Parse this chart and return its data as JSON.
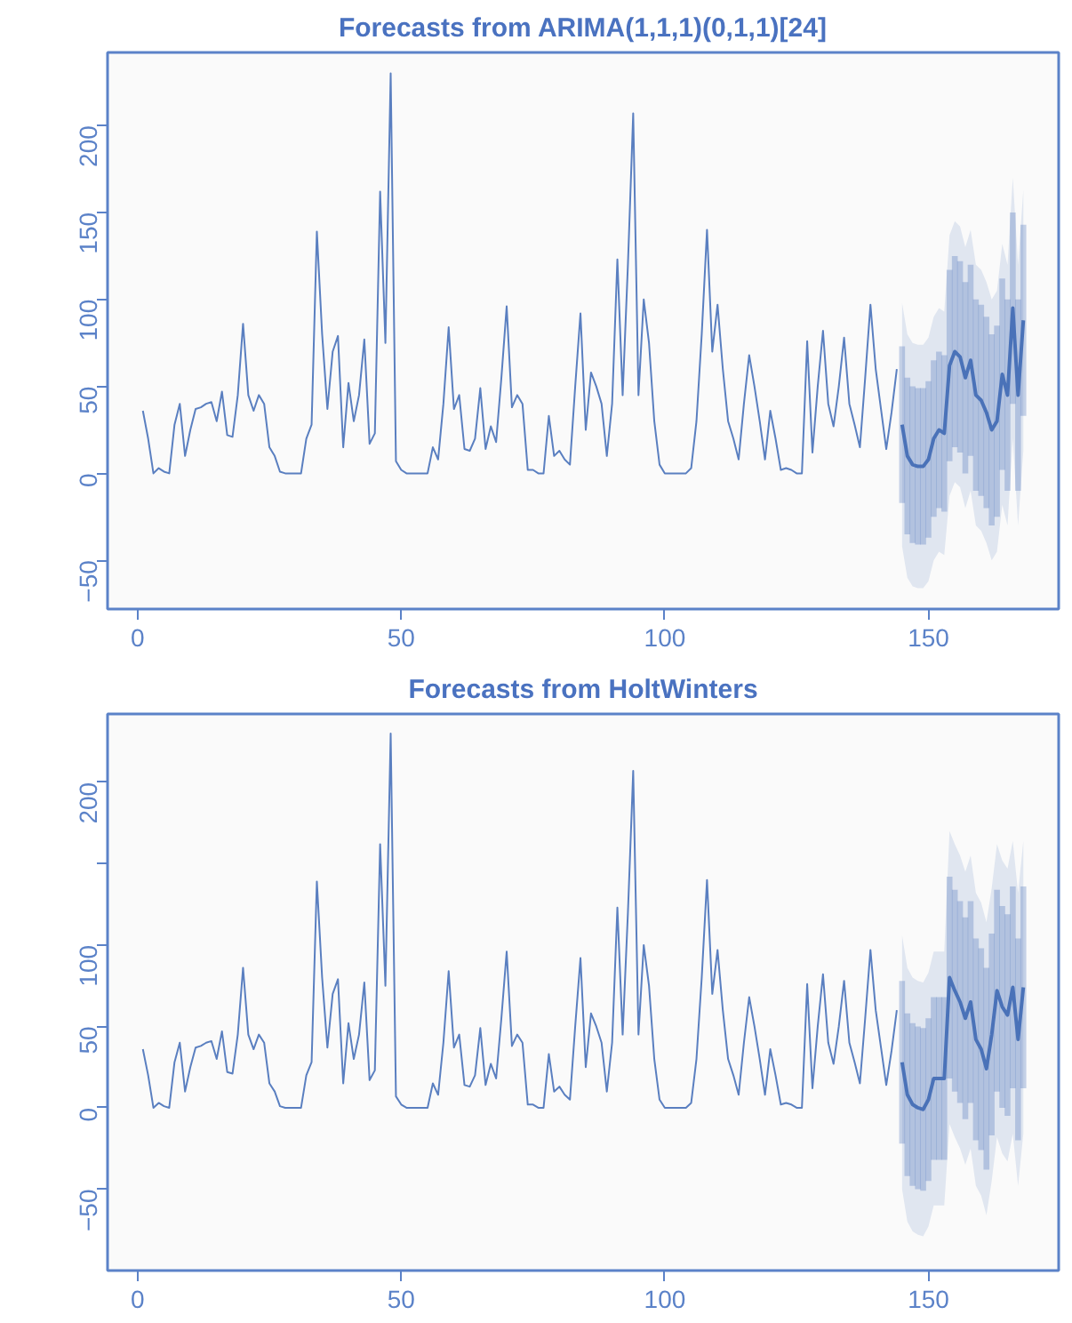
{
  "chart_data": [
    {
      "type": "line",
      "title": "Forecasts from ARIMA(1,1,1)(0,1,1)[24]",
      "xlim": [
        -5.7,
        174.7
      ],
      "ylim": [
        -78,
        242
      ],
      "xticks": [
        0,
        50,
        100,
        150
      ],
      "yticks": [
        -50,
        0,
        50,
        100,
        150,
        200
      ],
      "grid": false,
      "marker": "none",
      "line_style": "solid",
      "series": [
        {
          "color": "#5a7fc0",
          "x": [
            1,
            2,
            3,
            4,
            5,
            6,
            7,
            8,
            9,
            10,
            11,
            12,
            13,
            14,
            15,
            16,
            17,
            18,
            19,
            20,
            21,
            22,
            23,
            24,
            25,
            26,
            27,
            28,
            29,
            30,
            31,
            32,
            33,
            34,
            35,
            36,
            37,
            38,
            39,
            40,
            41,
            42,
            43,
            44,
            45,
            46,
            47,
            48,
            49,
            50,
            51,
            52,
            53,
            54,
            55,
            56,
            57,
            58,
            59,
            60,
            61,
            62,
            63,
            64,
            65,
            66,
            67,
            68,
            69,
            70,
            71,
            72,
            73,
            74,
            75,
            76,
            77,
            78,
            79,
            80,
            81,
            82,
            83,
            84,
            85,
            86,
            87,
            88,
            89,
            90,
            91,
            92,
            93,
            94,
            95,
            96,
            97,
            98,
            99,
            100,
            101,
            102,
            103,
            104,
            105,
            106,
            107,
            108,
            109,
            110,
            111,
            112,
            113,
            114,
            115,
            116,
            117,
            118,
            119,
            120,
            121,
            122,
            123,
            124,
            125,
            126,
            127,
            128,
            129,
            130,
            131,
            132,
            133,
            134,
            135,
            136,
            137,
            138,
            139,
            140,
            141,
            142,
            143,
            144
          ],
          "values": [
            36,
            20,
            0,
            3,
            1,
            0,
            28,
            40,
            10,
            25,
            37,
            38,
            40,
            41,
            30,
            47,
            22,
            21,
            45,
            86,
            45,
            36,
            45,
            40,
            15,
            10,
            1,
            0,
            0,
            0,
            0,
            20,
            28,
            139,
            80,
            37,
            70,
            79,
            15,
            52,
            30,
            45,
            77,
            17,
            23,
            162,
            75,
            230,
            7,
            2,
            0,
            0,
            0,
            0,
            0,
            15,
            8,
            40,
            84,
            37,
            45,
            14,
            13,
            20,
            49,
            14,
            27,
            18,
            55,
            96,
            38,
            45,
            40,
            2,
            2,
            0,
            0,
            33,
            10,
            13,
            8,
            5,
            50,
            92,
            25,
            58,
            50,
            40,
            10,
            40,
            123,
            45,
            120,
            207,
            45,
            100,
            75,
            30,
            5,
            0,
            0,
            0,
            0,
            0,
            3,
            30,
            80,
            140,
            70,
            97,
            60,
            30,
            20,
            8,
            40,
            68,
            50,
            30,
            8,
            36,
            20,
            2,
            3,
            2,
            0,
            0,
            76,
            12,
            50,
            82,
            40,
            27,
            50,
            78,
            40,
            28,
            15,
            55,
            97,
            60,
            37,
            14,
            35,
            60
          ]
        },
        {
          "color": "#4a72b8",
          "x": [
            145,
            146,
            147,
            148,
            149,
            150,
            151,
            152,
            153,
            154,
            155,
            156,
            157,
            158,
            159,
            160,
            161,
            162,
            163,
            164,
            165,
            166,
            167,
            168
          ],
          "values": [
            28,
            10,
            5,
            4,
            4,
            8,
            20,
            25,
            23,
            62,
            70,
            67,
            55,
            65,
            45,
            42,
            35,
            25,
            30,
            57,
            45,
            95,
            45,
            88
          ],
          "lower": [
            -42,
            -60,
            -65,
            -66,
            -66,
            -62,
            -50,
            -45,
            -47,
            -13,
            -5,
            -8,
            -20,
            -10,
            -30,
            -33,
            -40,
            -50,
            -45,
            -18,
            -30,
            20,
            -30,
            13
          ],
          "upper": [
            98,
            80,
            75,
            74,
            74,
            78,
            90,
            95,
            93,
            137,
            145,
            142,
            130,
            140,
            120,
            117,
            110,
            100,
            105,
            132,
            120,
            170,
            120,
            163
          ],
          "errors": [
            [
              -17,
              73
            ],
            [
              -35,
              55
            ],
            [
              -40,
              50
            ],
            [
              -41,
              49
            ],
            [
              -41,
              49
            ],
            [
              -37,
              53
            ],
            [
              -25,
              65
            ],
            [
              -20,
              70
            ],
            [
              -22,
              68
            ],
            [
              7,
              117
            ],
            [
              15,
              125
            ],
            [
              12,
              122
            ],
            [
              0,
              110
            ],
            [
              10,
              120
            ],
            [
              -10,
              100
            ],
            [
              -13,
              97
            ],
            [
              -20,
              90
            ],
            [
              -30,
              80
            ],
            [
              -25,
              85
            ],
            [
              2,
              112
            ],
            [
              -10,
              100
            ],
            [
              40,
              150
            ],
            [
              -10,
              100
            ],
            [
              33,
              143
            ]
          ]
        }
      ]
    },
    {
      "type": "line",
      "title": "Forecasts from HoltWinters",
      "xlim": [
        -5.7,
        174.7
      ],
      "ylim": [
        -100,
        242
      ],
      "xticks": [
        0,
        50,
        100,
        150
      ],
      "yticks": [
        -50,
        0,
        50,
        100,
        {
          "value": 150,
          "label": null
        },
        200
      ],
      "grid": false,
      "marker": "none",
      "line_style": "solid",
      "series": [
        {
          "color": "#5a7fc0",
          "x": [
            1,
            2,
            3,
            4,
            5,
            6,
            7,
            8,
            9,
            10,
            11,
            12,
            13,
            14,
            15,
            16,
            17,
            18,
            19,
            20,
            21,
            22,
            23,
            24,
            25,
            26,
            27,
            28,
            29,
            30,
            31,
            32,
            33,
            34,
            35,
            36,
            37,
            38,
            39,
            40,
            41,
            42,
            43,
            44,
            45,
            46,
            47,
            48,
            49,
            50,
            51,
            52,
            53,
            54,
            55,
            56,
            57,
            58,
            59,
            60,
            61,
            62,
            63,
            64,
            65,
            66,
            67,
            68,
            69,
            70,
            71,
            72,
            73,
            74,
            75,
            76,
            77,
            78,
            79,
            80,
            81,
            82,
            83,
            84,
            85,
            86,
            87,
            88,
            89,
            90,
            91,
            92,
            93,
            94,
            95,
            96,
            97,
            98,
            99,
            100,
            101,
            102,
            103,
            104,
            105,
            106,
            107,
            108,
            109,
            110,
            111,
            112,
            113,
            114,
            115,
            116,
            117,
            118,
            119,
            120,
            121,
            122,
            123,
            124,
            125,
            126,
            127,
            128,
            129,
            130,
            131,
            132,
            133,
            134,
            135,
            136,
            137,
            138,
            139,
            140,
            141,
            142,
            143,
            144
          ],
          "values": [
            36,
            20,
            0,
            3,
            1,
            0,
            28,
            40,
            10,
            25,
            37,
            38,
            40,
            41,
            30,
            47,
            22,
            21,
            45,
            86,
            45,
            36,
            45,
            40,
            15,
            10,
            1,
            0,
            0,
            0,
            0,
            20,
            28,
            139,
            80,
            37,
            70,
            79,
            15,
            52,
            30,
            45,
            77,
            17,
            23,
            162,
            75,
            230,
            7,
            2,
            0,
            0,
            0,
            0,
            0,
            15,
            8,
            40,
            84,
            37,
            45,
            14,
            13,
            20,
            49,
            14,
            27,
            18,
            55,
            96,
            38,
            45,
            40,
            2,
            2,
            0,
            0,
            33,
            10,
            13,
            8,
            5,
            50,
            92,
            25,
            58,
            50,
            40,
            10,
            40,
            123,
            45,
            120,
            207,
            45,
            100,
            75,
            30,
            5,
            0,
            0,
            0,
            0,
            0,
            3,
            30,
            80,
            140,
            70,
            97,
            60,
            30,
            20,
            8,
            40,
            68,
            50,
            30,
            8,
            36,
            20,
            2,
            3,
            2,
            0,
            0,
            76,
            12,
            50,
            82,
            40,
            27,
            50,
            78,
            40,
            28,
            15,
            55,
            97,
            60,
            37,
            14,
            35,
            60
          ]
        },
        {
          "color": "#4a72b8",
          "x": [
            145,
            146,
            147,
            148,
            149,
            150,
            151,
            152,
            153,
            154,
            155,
            156,
            157,
            158,
            159,
            160,
            161,
            162,
            163,
            164,
            165,
            166,
            167,
            168
          ],
          "values": [
            28,
            8,
            2,
            0,
            -1,
            5,
            18,
            18,
            18,
            80,
            72,
            65,
            55,
            65,
            42,
            36,
            24,
            45,
            72,
            62,
            57,
            74,
            42,
            74
          ],
          "lower": [
            -50,
            -70,
            -76,
            -78,
            -79,
            -73,
            -60,
            -60,
            -60,
            -10,
            -18,
            -25,
            -35,
            -25,
            -48,
            -54,
            -66,
            -45,
            -18,
            -28,
            -33,
            -16,
            -48,
            -16
          ],
          "upper": [
            106,
            86,
            80,
            78,
            77,
            83,
            96,
            96,
            96,
            170,
            162,
            155,
            145,
            155,
            132,
            126,
            114,
            135,
            162,
            152,
            147,
            164,
            132,
            164
          ],
          "errors": [
            [
              -22,
              78
            ],
            [
              -42,
              58
            ],
            [
              -48,
              52
            ],
            [
              -50,
              50
            ],
            [
              -51,
              49
            ],
            [
              -45,
              55
            ],
            [
              -32,
              68
            ],
            [
              -32,
              68
            ],
            [
              -32,
              68
            ],
            [
              18,
              142
            ],
            [
              10,
              134
            ],
            [
              3,
              127
            ],
            [
              -7,
              117
            ],
            [
              3,
              127
            ],
            [
              -20,
              104
            ],
            [
              -26,
              98
            ],
            [
              -38,
              86
            ],
            [
              -17,
              107
            ],
            [
              10,
              134
            ],
            [
              0,
              124
            ],
            [
              -5,
              119
            ],
            [
              12,
              136
            ],
            [
              -20,
              104
            ],
            [
              12,
              136
            ]
          ]
        }
      ]
    }
  ]
}
